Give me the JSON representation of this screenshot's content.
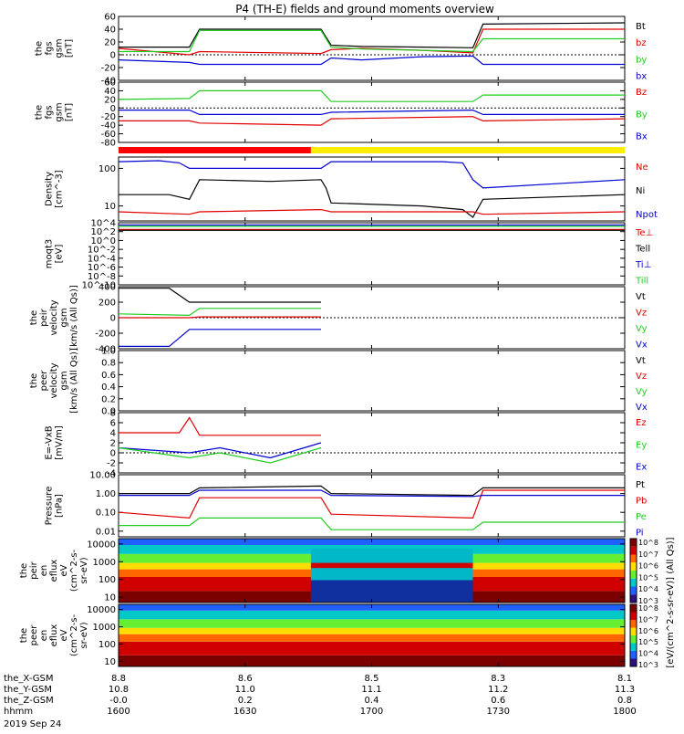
{
  "title": "P4 (TH-E) fields and ground moments overview",
  "date": "2019 Sep 24",
  "colors": {
    "black": "#000000",
    "red": "#e00000",
    "green": "#22cc22",
    "blue": "#0000d0",
    "yellow": "#ffee00",
    "mode_red": "#ff0000"
  },
  "mode_bar": {
    "segments": [
      {
        "from": "1600",
        "to": "1642",
        "color": "red"
      },
      {
        "from": "1642",
        "to": "1800",
        "color": "yellow"
      }
    ]
  },
  "ephemeris": {
    "labels": [
      "the_X-GSM",
      "the_Y-GSM",
      "the_Z-GSM",
      "hhmm"
    ],
    "columns": [
      [
        "8.8",
        "10.8",
        "-0.0",
        "1600"
      ],
      [
        "8.6",
        "11.0",
        "0.2",
        "1630"
      ],
      [
        "8.5",
        "11.1",
        "0.4",
        "1700"
      ],
      [
        "8.3",
        "11.2",
        "0.6",
        "1730"
      ],
      [
        "8.1",
        "11.3",
        "0.8",
        "1800"
      ]
    ]
  },
  "colorbar_label": "[eV/(cm^2-s-sr-eV)] (All Qs)]",
  "chart_data": [
    {
      "type": "line",
      "ylabel": [
        "the",
        "fgs",
        "gsm",
        "[nT]"
      ],
      "ylim": [
        -40,
        60
      ],
      "yticks": [
        "-40",
        "-20",
        "0",
        "20",
        "40",
        "60"
      ],
      "legend": [
        {
          "name": "Bt",
          "color": "black"
        },
        {
          "name": "bz",
          "color": "red"
        },
        {
          "name": "by",
          "color": "green"
        },
        {
          "name": "bx",
          "color": "blue"
        }
      ],
      "series": [
        {
          "color": "black",
          "x": [
            0,
            14,
            16,
            40,
            42,
            48,
            60,
            70,
            72,
            100
          ],
          "y": [
            12,
            12,
            40,
            40,
            15,
            13,
            12,
            11,
            48,
            50
          ]
        },
        {
          "color": "red",
          "x": [
            0,
            14,
            16,
            40,
            42,
            48,
            60,
            70,
            72,
            100
          ],
          "y": [
            10,
            0,
            5,
            2,
            8,
            10,
            7,
            3,
            40,
            40
          ]
        },
        {
          "color": "green",
          "x": [
            0,
            14,
            16,
            40,
            42,
            48,
            60,
            70,
            72,
            100
          ],
          "y": [
            5,
            5,
            38,
            38,
            12,
            9,
            7,
            5,
            25,
            25
          ]
        },
        {
          "color": "blue",
          "x": [
            0,
            14,
            16,
            40,
            42,
            48,
            60,
            70,
            72,
            100
          ],
          "y": [
            -8,
            -12,
            -15,
            -15,
            -5,
            -8,
            -3,
            -2,
            -15,
            -15
          ]
        }
      ]
    },
    {
      "type": "line",
      "ylabel": [
        "the",
        "fgs",
        "gsm",
        "[nT]"
      ],
      "ylim": [
        -80,
        60
      ],
      "yticks": [
        "-80",
        "-60",
        "-40",
        "-20",
        "0",
        "20",
        "40",
        "60"
      ],
      "legend": [
        {
          "name": "Bz",
          "color": "red"
        },
        {
          "name": "By",
          "color": "green"
        },
        {
          "name": "Bx",
          "color": "blue"
        }
      ],
      "series": [
        {
          "color": "red",
          "x": [
            0,
            14,
            16,
            40,
            42,
            70,
            72,
            100
          ],
          "y": [
            -30,
            -30,
            -35,
            -40,
            -25,
            -20,
            -30,
            -25
          ]
        },
        {
          "color": "green",
          "x": [
            0,
            14,
            16,
            40,
            42,
            70,
            72,
            100
          ],
          "y": [
            20,
            22,
            40,
            40,
            15,
            15,
            30,
            30
          ]
        },
        {
          "color": "blue",
          "x": [
            0,
            14,
            16,
            40,
            42,
            70,
            72,
            100
          ],
          "y": [
            -5,
            -5,
            -15,
            -15,
            -10,
            -5,
            -15,
            -15
          ]
        }
      ]
    },
    {
      "type": "line",
      "ylabel": [
        "Density",
        "[cm^-3]"
      ],
      "ylog": true,
      "ylim": [
        4,
        200
      ],
      "yticks": [
        "10",
        "100"
      ],
      "ytick_vals": [
        10,
        100
      ],
      "legend": [
        {
          "name": "Ne",
          "color": "red"
        },
        {
          "name": "Ni",
          "color": "black"
        },
        {
          "name": "Npot",
          "color": "blue"
        }
      ],
      "series": [
        {
          "color": "blue",
          "x": [
            0,
            8,
            12,
            14,
            16,
            30,
            38,
            40,
            42,
            64,
            68,
            70,
            72,
            100
          ],
          "y": [
            150,
            160,
            140,
            100,
            100,
            100,
            100,
            100,
            150,
            150,
            140,
            50,
            30,
            50
          ]
        },
        {
          "color": "black",
          "x": [
            0,
            10,
            14,
            16,
            30,
            40,
            41,
            42,
            60,
            68,
            70,
            72,
            100
          ],
          "y": [
            20,
            20,
            15,
            50,
            45,
            50,
            30,
            12,
            10,
            8,
            5,
            15,
            20
          ]
        },
        {
          "color": "red",
          "x": [
            0,
            14,
            16,
            40,
            42,
            70,
            72,
            100
          ],
          "y": [
            7,
            6,
            7,
            8,
            7,
            7,
            6,
            7
          ]
        }
      ]
    },
    {
      "type": "line",
      "ylabel": [
        "moqt3",
        "[eV]"
      ],
      "ylog": true,
      "ylim": [
        1e-10,
        10000
      ],
      "yticks": [
        "10^-10",
        "10^-8",
        "10^-6",
        "10^-4",
        "10^-2",
        "10^0",
        "10^2",
        "10^4"
      ],
      "ytick_vals": [
        1e-10,
        1e-08,
        1e-06,
        0.0001,
        0.01,
        1,
        100,
        10000
      ],
      "legend": [
        {
          "name": "Te⊥",
          "color": "red"
        },
        {
          "name": "Tell",
          "color": "black"
        },
        {
          "name": "Ti⊥",
          "color": "blue"
        },
        {
          "name": "Till",
          "color": "green"
        }
      ],
      "series": [
        {
          "color": "blue",
          "x": [
            0,
            100
          ],
          "y": [
            3000,
            3000
          ]
        },
        {
          "color": "green",
          "x": [
            0,
            100
          ],
          "y": [
            1500,
            1500
          ]
        },
        {
          "color": "red",
          "x": [
            0,
            100
          ],
          "y": [
            300,
            300
          ]
        },
        {
          "color": "black",
          "x": [
            0,
            100
          ],
          "y": [
            200,
            200
          ]
        }
      ]
    },
    {
      "type": "line",
      "ylabel": [
        "the",
        "peir",
        "velocity",
        "gsm",
        "[km/s (All Qs)]"
      ],
      "ylim": [
        -400,
        400
      ],
      "yticks": [
        "-400",
        "-200",
        "0",
        "200",
        "400"
      ],
      "legend": [
        {
          "name": "Vt",
          "color": "black"
        },
        {
          "name": "Vz",
          "color": "red"
        },
        {
          "name": "Vy",
          "color": "green"
        },
        {
          "name": "Vx",
          "color": "blue"
        }
      ],
      "series": [
        {
          "color": "black",
          "x": [
            0,
            10,
            14,
            20,
            40
          ],
          "y": [
            380,
            380,
            200,
            200,
            200
          ]
        },
        {
          "color": "red",
          "x": [
            0,
            14,
            16,
            40
          ],
          "y": [
            0,
            0,
            10,
            10
          ]
        },
        {
          "color": "green",
          "x": [
            0,
            14,
            16,
            40
          ],
          "y": [
            50,
            30,
            120,
            120
          ]
        },
        {
          "color": "blue",
          "x": [
            0,
            10,
            14,
            20,
            40
          ],
          "y": [
            -370,
            -370,
            -150,
            -150,
            -150
          ]
        }
      ]
    },
    {
      "type": "line",
      "ylabel": [
        "the",
        "peer",
        "velocity",
        "gsm",
        "[km/s (All Qs)]"
      ],
      "ylim": [
        0,
        1
      ],
      "yticks": [
        "0.0",
        "0.2",
        "0.4",
        "0.6",
        "0.8",
        "1.0"
      ],
      "legend": [
        {
          "name": "Vt",
          "color": "black"
        },
        {
          "name": "Vz",
          "color": "red"
        },
        {
          "name": "Vy",
          "color": "green"
        },
        {
          "name": "Vx",
          "color": "blue"
        }
      ],
      "series": []
    },
    {
      "type": "line",
      "ylabel": [
        "E=-VxB",
        "[mV/m]"
      ],
      "ylim": [
        -4,
        8
      ],
      "yticks": [
        "-4",
        "-2",
        "0",
        "2",
        "4",
        "6",
        "8"
      ],
      "legend": [
        {
          "name": "Ez",
          "color": "red"
        },
        {
          "name": "Ey",
          "color": "green"
        },
        {
          "name": "Ex",
          "color": "blue"
        }
      ],
      "series": [
        {
          "color": "red",
          "x": [
            0,
            12,
            14,
            16,
            40
          ],
          "y": [
            4,
            4,
            7,
            3.5,
            3.5
          ]
        },
        {
          "color": "blue",
          "x": [
            0,
            14,
            20,
            30,
            40
          ],
          "y": [
            1,
            0,
            1,
            -1,
            2
          ]
        },
        {
          "color": "green",
          "x": [
            0,
            14,
            20,
            30,
            40
          ],
          "y": [
            1,
            -1,
            0,
            -2,
            1
          ]
        }
      ]
    },
    {
      "type": "line",
      "ylabel": [
        "Pressure",
        "[nPa]"
      ],
      "ylog": true,
      "ylim": [
        0.005,
        10
      ],
      "yticks": [
        "0.01",
        "0.10",
        "1.00",
        "10.00"
      ],
      "ytick_vals": [
        0.01,
        0.1,
        1,
        10
      ],
      "legend": [
        {
          "name": "Pt",
          "color": "black"
        },
        {
          "name": "Pb",
          "color": "red"
        },
        {
          "name": "Pe",
          "color": "green"
        },
        {
          "name": "Pi",
          "color": "blue"
        }
      ],
      "series": [
        {
          "color": "black",
          "x": [
            0,
            14,
            16,
            40,
            42,
            70,
            72,
            100
          ],
          "y": [
            1.0,
            1.0,
            2.0,
            2.5,
            1.0,
            0.8,
            2.0,
            2.0
          ]
        },
        {
          "color": "red",
          "x": [
            0,
            14,
            16,
            40,
            42,
            70,
            72,
            100
          ],
          "y": [
            0.1,
            0.05,
            0.6,
            0.6,
            0.08,
            0.05,
            1.5,
            1.5
          ]
        },
        {
          "color": "green",
          "x": [
            0,
            14,
            16,
            40,
            42,
            70,
            72,
            100
          ],
          "y": [
            0.02,
            0.02,
            0.05,
            0.05,
            0.012,
            0.012,
            0.03,
            0.03
          ]
        },
        {
          "color": "blue",
          "x": [
            0,
            14,
            16,
            40,
            42,
            70,
            72,
            100
          ],
          "y": [
            0.8,
            0.8,
            1.5,
            1.5,
            0.8,
            0.7,
            0.8,
            0.8
          ]
        }
      ]
    },
    {
      "type": "heatmap",
      "ylabel": [
        "the",
        "peir",
        "en",
        "eflux",
        "eV",
        "(cm^2-s-",
        "sr-eV)"
      ],
      "ylog": true,
      "ylim": [
        5,
        20000
      ],
      "yticks": [
        "10",
        "100",
        "1000",
        "10000"
      ],
      "ytick_vals": [
        10,
        100,
        1000,
        10000
      ],
      "colorbar_ticks": [
        "10^3",
        "10^4",
        "10^5",
        "10^6",
        "10^7",
        "10^8"
      ]
    },
    {
      "type": "heatmap",
      "ylabel": [
        "the",
        "peer",
        "en",
        "eflux",
        "eV",
        "(cm^2-s-",
        "sr-eV)"
      ],
      "ylog": true,
      "ylim": [
        5,
        20000
      ],
      "yticks": [
        "10",
        "100",
        "1000",
        "10000"
      ],
      "ytick_vals": [
        10,
        100,
        1000,
        10000
      ],
      "colorbar_ticks": [
        "10^3",
        "10^4",
        "10^5",
        "10^6",
        "10^7",
        "10^8"
      ]
    }
  ]
}
